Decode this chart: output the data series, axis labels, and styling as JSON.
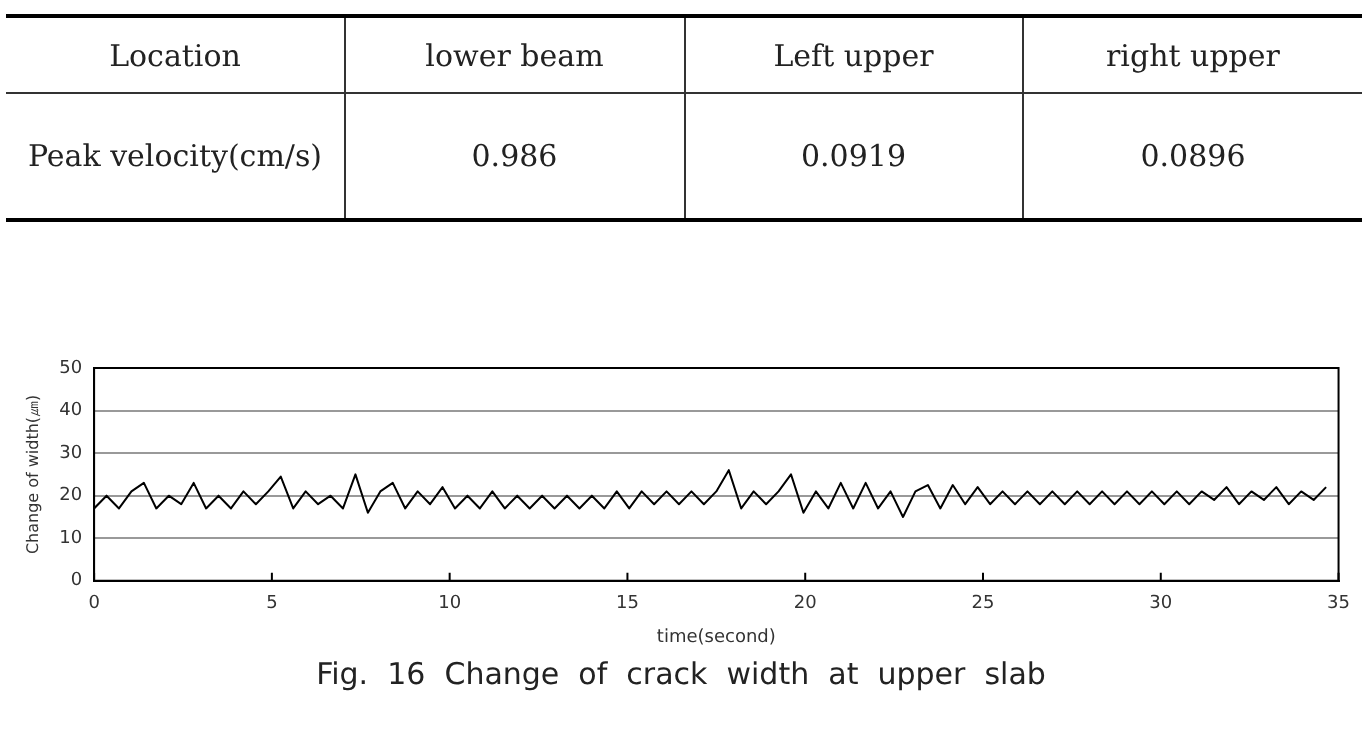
{
  "chart_data": [
    {
      "type": "other",
      "annotations": [
        "Location",
        "lower  beam",
        "Left  upper",
        "right  upper",
        "Peak velocity(cm/s)",
        "0.986",
        "0.0919",
        "0.0896"
      ]
    },
    {
      "type": "line",
      "title": "Fig.  16  Change  of  crack  width  at  upper  slab",
      "xlabel": "time(second)",
      "ylabel": "Change of width(㎛)",
      "x": [
        0,
        0.35,
        0.7,
        1.05,
        1.4,
        1.75,
        2.1,
        2.45,
        2.8,
        3.15,
        3.5,
        3.85,
        4.2,
        4.55,
        4.9,
        5.25,
        5.6,
        5.95,
        6.3,
        6.65,
        7,
        7.35,
        7.7,
        8.05,
        8.4,
        8.75,
        9.1,
        9.45,
        9.8,
        10.15,
        10.5,
        10.85,
        11.2,
        11.55,
        11.9,
        12.25,
        12.6,
        12.95,
        13.3,
        13.65,
        14,
        14.35,
        14.7,
        15.05,
        15.4,
        15.75,
        16.1,
        16.45,
        16.8,
        17.15,
        17.5,
        17.85,
        18.2,
        18.55,
        18.9,
        19.25,
        19.6,
        19.95,
        20.3,
        20.65,
        21,
        21.35,
        21.7,
        22.05,
        22.4,
        22.75,
        23.1,
        23.45,
        23.8,
        24.15,
        24.5,
        24.85,
        25.2,
        25.55,
        25.9,
        26.25,
        26.6,
        26.95,
        27.3,
        27.65,
        28,
        28.35,
        28.7,
        29.05,
        29.4,
        29.75,
        30.1,
        30.45,
        30.8,
        31.15,
        31.5,
        31.85,
        32.2,
        32.55,
        32.9,
        33.25,
        33.6,
        33.95,
        34.3,
        34.65
      ],
      "series": [
        {
          "color": "#000000",
          "values": [
            17,
            20,
            17,
            21,
            23,
            17,
            20,
            18,
            23,
            17,
            20,
            17,
            21,
            18,
            21,
            24.5,
            17,
            21,
            18,
            20,
            17,
            25,
            16,
            21,
            23,
            17,
            21,
            18,
            22,
            17,
            20,
            17,
            21,
            17,
            20,
            17,
            20,
            17,
            20,
            17,
            20,
            17,
            21,
            17,
            21,
            18,
            21,
            18,
            21,
            18,
            21,
            26,
            17,
            21,
            18,
            21,
            25,
            16,
            21,
            17,
            23,
            17,
            23,
            17,
            21,
            15,
            21,
            22.5,
            17,
            22.5,
            18,
            22,
            18,
            21,
            18,
            21,
            18,
            21,
            18,
            21,
            18,
            21,
            18,
            21,
            18,
            21,
            18,
            21,
            18,
            21,
            19,
            22,
            18,
            21,
            19,
            22,
            18,
            21,
            19,
            22
          ]
        }
      ],
      "xlim": [
        0,
        35
      ],
      "xticks": [
        0,
        5,
        10,
        15,
        20,
        25,
        30,
        35
      ],
      "ylim": [
        0,
        50
      ],
      "yticks": [
        0,
        10,
        20,
        30,
        40,
        50
      ],
      "grid": "y",
      "legend": false,
      "marker": "none",
      "line_style": "solid"
    }
  ]
}
